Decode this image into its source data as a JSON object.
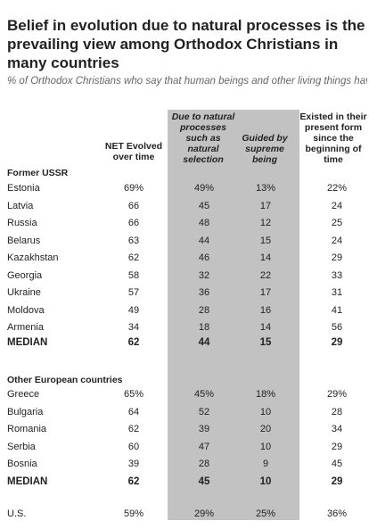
{
  "title": "Belief in evolution due to natural processes is the prevailing view among Orthodox Christians in many countries",
  "subtitle": "% of Orthodox Christians who say that human beings and other living things have ...",
  "columns": {
    "net": "NET Evolved\nover time",
    "natural": "Due to natural\nprocesses\nsuch as\nnatural\nselection",
    "supreme": "Guided by\nsupreme\nbeing",
    "present": "Existed in  their\npresent form\nsince the\nbeginning of\ntime"
  },
  "sections": [
    {
      "label": "Former USSR",
      "rows": [
        {
          "name": "Estonia",
          "net": "69%",
          "natural": "49%",
          "supreme": "13%",
          "present": "22%"
        },
        {
          "name": "Latvia",
          "net": "66",
          "natural": "45",
          "supreme": "17",
          "present": "24"
        },
        {
          "name": "Russia",
          "net": "66",
          "natural": "48",
          "supreme": "12",
          "present": "25"
        },
        {
          "name": "Belarus",
          "net": "63",
          "natural": "44",
          "supreme": "15",
          "present": "24"
        },
        {
          "name": "Kazakhstan",
          "net": "62",
          "natural": "46",
          "supreme": "14",
          "present": "29"
        },
        {
          "name": "Georgia",
          "net": "58",
          "natural": "32",
          "supreme": "22",
          "present": "33"
        },
        {
          "name": "Ukraine",
          "net": "57",
          "natural": "36",
          "supreme": "17",
          "present": "31"
        },
        {
          "name": "Moldova",
          "net": "49",
          "natural": "28",
          "supreme": "16",
          "present": "41"
        },
        {
          "name": "Armenia",
          "net": "34",
          "natural": "18",
          "supreme": "14",
          "present": "56"
        }
      ],
      "median": {
        "name": "MEDIAN",
        "net": "62",
        "natural": "44",
        "supreme": "15",
        "present": "29"
      }
    },
    {
      "label": "Other European countries",
      "rows": [
        {
          "name": "Greece",
          "net": "65%",
          "natural": "45%",
          "supreme": "18%",
          "present": "29%"
        },
        {
          "name": "Bulgaria",
          "net": "64",
          "natural": "52",
          "supreme": "10",
          "present": "28"
        },
        {
          "name": "Romania",
          "net": "62",
          "natural": "39",
          "supreme": "20",
          "present": "34"
        },
        {
          "name": "Serbia",
          "net": "60",
          "natural": "47",
          "supreme": "10",
          "present": "29"
        },
        {
          "name": "Bosnia",
          "net": "39",
          "natural": "28",
          "supreme": "9",
          "present": "45"
        }
      ],
      "median": {
        "name": "MEDIAN",
        "net": "62",
        "natural": "45",
        "supreme": "10",
        "present": "29"
      }
    }
  ],
  "us": {
    "name": "U.S.",
    "net": "59%",
    "natural": "29%",
    "supreme": "25%",
    "present": "36%"
  },
  "chart_data": {
    "type": "table",
    "title": "Belief in evolution due to natural processes is the prevailing view among Orthodox Christians in many countries",
    "columns": [
      "NET Evolved over time",
      "Due to natural processes such as natural selection",
      "Guided by supreme being",
      "Existed in their present form since the beginning of time"
    ],
    "groups": [
      {
        "group": "Former USSR",
        "rows": [
          {
            "country": "Estonia",
            "values": [
              69,
              49,
              13,
              22
            ]
          },
          {
            "country": "Latvia",
            "values": [
              66,
              45,
              17,
              24
            ]
          },
          {
            "country": "Russia",
            "values": [
              66,
              48,
              12,
              25
            ]
          },
          {
            "country": "Belarus",
            "values": [
              63,
              44,
              15,
              24
            ]
          },
          {
            "country": "Kazakhstan",
            "values": [
              62,
              46,
              14,
              29
            ]
          },
          {
            "country": "Georgia",
            "values": [
              58,
              32,
              22,
              33
            ]
          },
          {
            "country": "Ukraine",
            "values": [
              57,
              36,
              17,
              31
            ]
          },
          {
            "country": "Moldova",
            "values": [
              49,
              28,
              16,
              41
            ]
          },
          {
            "country": "Armenia",
            "values": [
              34,
              18,
              14,
              56
            ]
          },
          {
            "country": "MEDIAN",
            "values": [
              62,
              44,
              15,
              29
            ]
          }
        ]
      },
      {
        "group": "Other European countries",
        "rows": [
          {
            "country": "Greece",
            "values": [
              65,
              45,
              18,
              29
            ]
          },
          {
            "country": "Bulgaria",
            "values": [
              64,
              52,
              10,
              28
            ]
          },
          {
            "country": "Romania",
            "values": [
              62,
              39,
              20,
              34
            ]
          },
          {
            "country": "Serbia",
            "values": [
              60,
              47,
              10,
              29
            ]
          },
          {
            "country": "Bosnia",
            "values": [
              39,
              28,
              9,
              45
            ]
          },
          {
            "country": "MEDIAN",
            "values": [
              62,
              45,
              10,
              29
            ]
          }
        ]
      },
      {
        "group": "",
        "rows": [
          {
            "country": "U.S.",
            "values": [
              59,
              29,
              25,
              36
            ]
          }
        ]
      }
    ]
  }
}
